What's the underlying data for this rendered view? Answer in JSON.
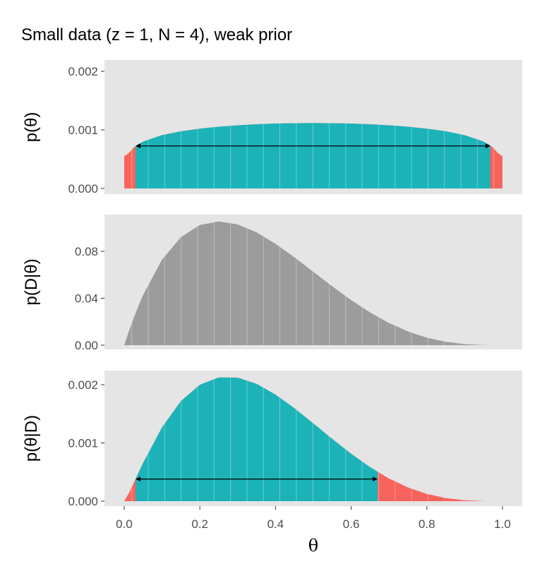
{
  "chart_data": {
    "type": "area",
    "title": "Small data (z = 1, N = 4), weak prior",
    "xlabel": "θ",
    "xlim": [
      0,
      1
    ],
    "x_ticks": [
      "0.0",
      "0.2",
      "0.4",
      "0.6",
      "0.8",
      "1.0"
    ],
    "x": [
      0,
      0.01,
      0.02,
      0.03,
      0.05,
      0.1,
      0.15,
      0.2,
      0.25,
      0.3,
      0.35,
      0.4,
      0.45,
      0.5,
      0.55,
      0.6,
      0.65,
      0.7,
      0.75,
      0.8,
      0.85,
      0.9,
      0.95,
      0.97,
      0.98,
      0.99,
      1.0
    ],
    "colors": {
      "hdi": "#1bb3b8",
      "outside": "#f8645c",
      "likelihood": "#9c9c9c",
      "panel": "#e5e5e5"
    },
    "panels": [
      {
        "name": "prior",
        "ylabel": "p(θ)",
        "ylim": [
          0,
          0.00215
        ],
        "y_ticks": [
          0,
          0.001,
          0.002
        ],
        "y_tick_labels": [
          "0.000",
          "0.001",
          "0.002"
        ],
        "values": [
          0.00055,
          0.000585,
          0.000671,
          0.000726,
          0.000801,
          0.00091,
          0.000976,
          0.001021,
          0.001054,
          0.001078,
          0.001096,
          0.001108,
          0.001114,
          0.001117,
          0.001114,
          0.001108,
          0.001096,
          0.001078,
          0.001054,
          0.001021,
          0.000976,
          0.00091,
          0.000801,
          0.000726,
          0.000671,
          0.000585,
          0.00055
        ],
        "hdi": [
          0.03,
          0.968
        ]
      },
      {
        "name": "likelihood",
        "ylabel": "p(D|θ)",
        "ylim": [
          0,
          0.112
        ],
        "y_ticks": [
          0,
          0.04,
          0.08
        ],
        "y_tick_labels": [
          "0.00",
          "0.04",
          "0.08"
        ],
        "values": [
          0,
          0.0097,
          0.0188,
          0.0274,
          0.04287,
          0.0729,
          0.09212,
          0.1024,
          0.10547,
          0.1029,
          0.09612,
          0.0864,
          0.07487,
          0.0625,
          0.05012,
          0.0384,
          0.02787,
          0.0189,
          0.01172,
          0.0064,
          0.00287,
          0.0009,
          0.00012,
          3e-05,
          0,
          0,
          0
        ],
        "hdi": null
      },
      {
        "name": "posterior",
        "ylabel": "p(θ|D)",
        "ylim": [
          0,
          0.00215
        ],
        "y_ticks": [
          0,
          0.001,
          0.002
        ],
        "y_tick_labels": [
          "0.000",
          "0.001",
          "0.002"
        ],
        "values": [
          0,
          0.000108,
          0.000241,
          0.00038,
          0.000657,
          0.001268,
          0.001719,
          0.001999,
          0.002125,
          0.002121,
          0.002014,
          0.00183,
          0.001595,
          0.001335,
          0.001068,
          0.000813,
          0.000584,
          0.00039,
          0.000236,
          0.000125,
          5.36e-05,
          1.57e-05,
          1.8e-06,
          0,
          0,
          0,
          0
        ],
        "hdi": [
          0.03,
          0.67
        ]
      }
    ]
  }
}
